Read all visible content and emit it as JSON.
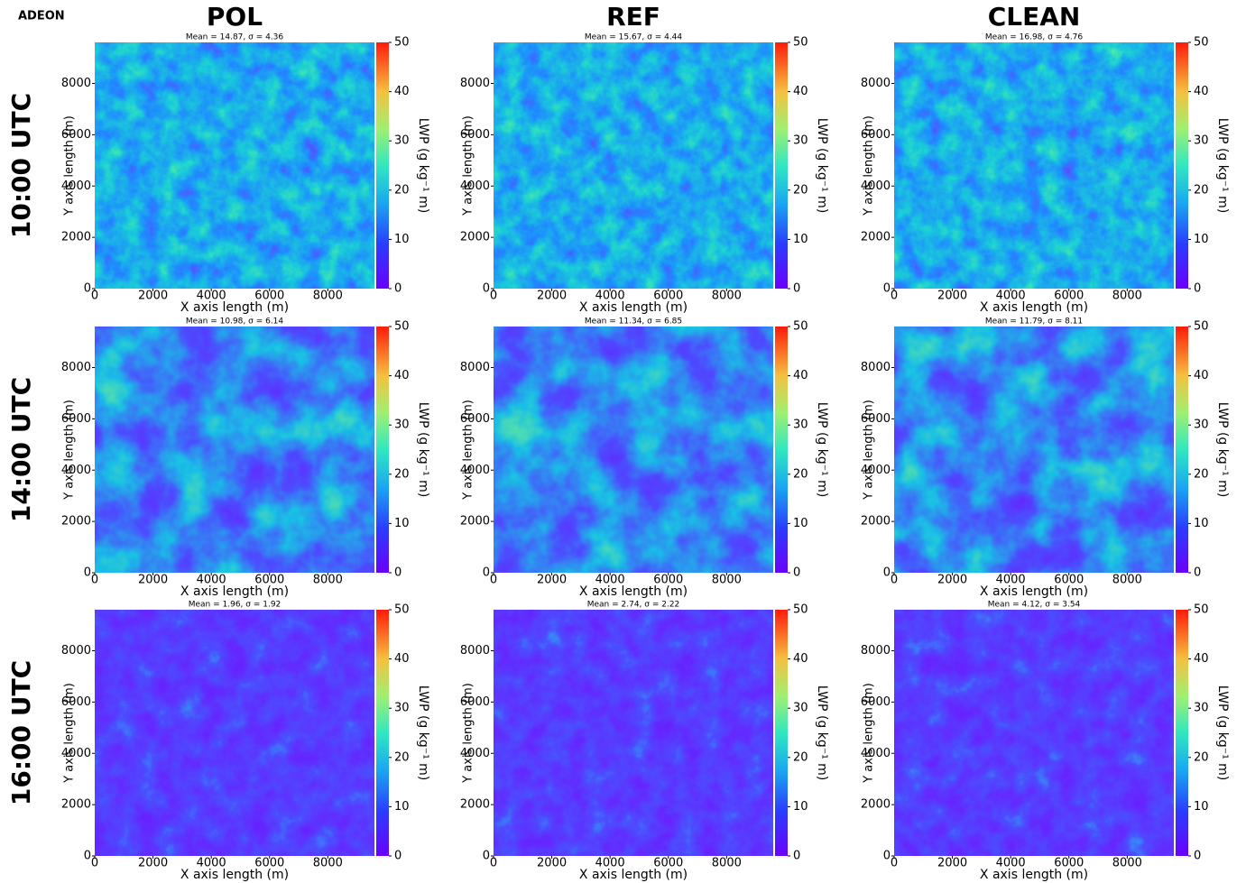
{
  "figure": {
    "label": "ADEON",
    "columns": [
      "POL",
      "REF",
      "CLEAN"
    ],
    "rows": [
      "10:00 UTC",
      "14:00 UTC",
      "16:00 UTC"
    ]
  },
  "chart_data": [
    {
      "type": "heatmap",
      "title": "Mean = 14.87, σ = 4.36",
      "xlabel": "X axis length (m)",
      "ylabel": "Y axis length (m)",
      "xlim": [
        0,
        9600
      ],
      "ylim": [
        0,
        9600
      ],
      "xticks": [
        0,
        2000,
        4000,
        6000,
        8000
      ],
      "yticks": [
        0,
        2000,
        4000,
        6000,
        8000
      ],
      "colorbar": {
        "label": "LWP (g kg⁻¹ m)",
        "lim": [
          0,
          50
        ],
        "ticks": [
          0,
          10,
          20,
          30,
          40,
          50
        ]
      }
    },
    {
      "type": "heatmap",
      "title": "Mean = 15.67, σ = 4.44",
      "xlabel": "X axis length (m)",
      "ylabel": "Y axis length (m)",
      "xlim": [
        0,
        9600
      ],
      "ylim": [
        0,
        9600
      ],
      "xticks": [
        0,
        2000,
        4000,
        6000,
        8000
      ],
      "yticks": [
        0,
        2000,
        4000,
        6000,
        8000
      ],
      "colorbar": {
        "label": "LWP (g kg⁻¹ m)",
        "lim": [
          0,
          50
        ],
        "ticks": [
          0,
          10,
          20,
          30,
          40,
          50
        ]
      }
    },
    {
      "type": "heatmap",
      "title": "Mean = 16.98, σ = 4.76",
      "xlabel": "X axis length (m)",
      "ylabel": "Y axis length (m)",
      "xlim": [
        0,
        9600
      ],
      "ylim": [
        0,
        9600
      ],
      "xticks": [
        0,
        2000,
        4000,
        6000,
        8000
      ],
      "yticks": [
        0,
        2000,
        4000,
        6000,
        8000
      ],
      "colorbar": {
        "label": "LWP (g kg⁻¹ m)",
        "lim": [
          0,
          50
        ],
        "ticks": [
          0,
          10,
          20,
          30,
          40,
          50
        ]
      }
    },
    {
      "type": "heatmap",
      "title": "Mean = 10.98, σ = 6.14",
      "xlabel": "X axis length (m)",
      "ylabel": "Y axis length (m)",
      "xlim": [
        0,
        9600
      ],
      "ylim": [
        0,
        9600
      ],
      "xticks": [
        0,
        2000,
        4000,
        6000,
        8000
      ],
      "yticks": [
        0,
        2000,
        4000,
        6000,
        8000
      ],
      "colorbar": {
        "label": "LWP (g kg⁻¹ m)",
        "lim": [
          0,
          50
        ],
        "ticks": [
          0,
          10,
          20,
          30,
          40,
          50
        ]
      }
    },
    {
      "type": "heatmap",
      "title": "Mean = 11.34, σ = 6.85",
      "xlabel": "X axis length (m)",
      "ylabel": "Y axis length (m)",
      "xlim": [
        0,
        9600
      ],
      "ylim": [
        0,
        9600
      ],
      "xticks": [
        0,
        2000,
        4000,
        6000,
        8000
      ],
      "yticks": [
        0,
        2000,
        4000,
        6000,
        8000
      ],
      "colorbar": {
        "label": "LWP (g kg⁻¹ m)",
        "lim": [
          0,
          50
        ],
        "ticks": [
          0,
          10,
          20,
          30,
          40,
          50
        ]
      }
    },
    {
      "type": "heatmap",
      "title": "Mean = 11.79, σ = 8.11",
      "xlabel": "X axis length (m)",
      "ylabel": "Y axis length (m)",
      "xlim": [
        0,
        9600
      ],
      "ylim": [
        0,
        9600
      ],
      "xticks": [
        0,
        2000,
        4000,
        6000,
        8000
      ],
      "yticks": [
        0,
        2000,
        4000,
        6000,
        8000
      ],
      "colorbar": {
        "label": "LWP (g kg⁻¹ m)",
        "lim": [
          0,
          50
        ],
        "ticks": [
          0,
          10,
          20,
          30,
          40,
          50
        ]
      }
    },
    {
      "type": "heatmap",
      "title": "Mean = 1.96, σ = 1.92",
      "xlabel": "X axis length (m)",
      "ylabel": "Y axis length (m)",
      "xlim": [
        0,
        9600
      ],
      "ylim": [
        0,
        9600
      ],
      "xticks": [
        0,
        2000,
        4000,
        6000,
        8000
      ],
      "yticks": [
        0,
        2000,
        4000,
        6000,
        8000
      ],
      "colorbar": {
        "label": "LWP (g kg⁻¹ m)",
        "lim": [
          0,
          50
        ],
        "ticks": [
          0,
          10,
          20,
          30,
          40,
          50
        ]
      }
    },
    {
      "type": "heatmap",
      "title": "Mean = 2.74, σ = 2.22",
      "xlabel": "X axis length (m)",
      "ylabel": "Y axis length (m)",
      "xlim": [
        0,
        9600
      ],
      "ylim": [
        0,
        9600
      ],
      "xticks": [
        0,
        2000,
        4000,
        6000,
        8000
      ],
      "yticks": [
        0,
        2000,
        4000,
        6000,
        8000
      ],
      "colorbar": {
        "label": "LWP (g kg⁻¹ m)",
        "lim": [
          0,
          50
        ],
        "ticks": [
          0,
          10,
          20,
          30,
          40,
          50
        ]
      }
    },
    {
      "type": "heatmap",
      "title": "Mean = 4.12, σ = 3.54",
      "xlabel": "X axis length (m)",
      "ylabel": "Y axis length (m)",
      "xlim": [
        0,
        9600
      ],
      "ylim": [
        0,
        9600
      ],
      "xticks": [
        0,
        2000,
        4000,
        6000,
        8000
      ],
      "yticks": [
        0,
        2000,
        4000,
        6000,
        8000
      ],
      "colorbar": {
        "label": "LWP (g kg⁻¹ m)",
        "lim": [
          0,
          50
        ],
        "ticks": [
          0,
          10,
          20,
          30,
          40,
          50
        ]
      }
    }
  ]
}
